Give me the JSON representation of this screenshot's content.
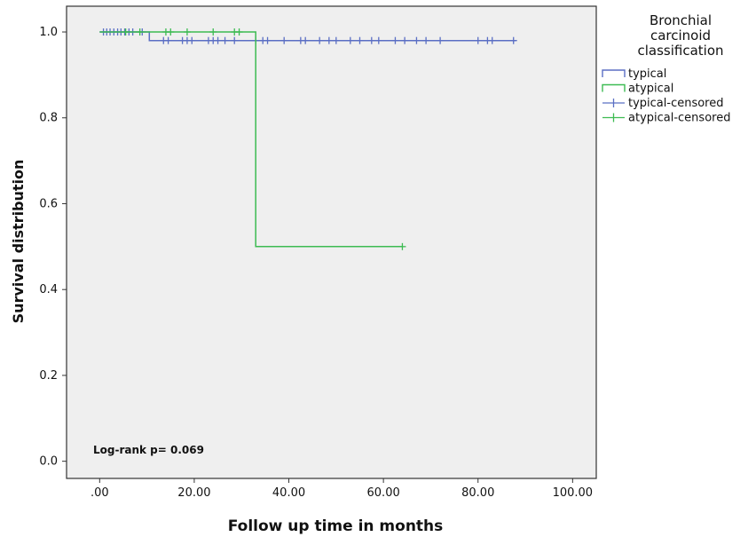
{
  "chart_data": {
    "type": "line",
    "subtype": "kaplan-meier",
    "xlabel": "Follow up time in months",
    "ylabel": "Survival distribution",
    "xlim": [
      -7,
      105
    ],
    "ylim": [
      -0.04,
      1.06
    ],
    "x_ticks": [
      0,
      20,
      40,
      60,
      80,
      100
    ],
    "x_tick_labels": [
      ".00",
      "20.00",
      "40.00",
      "60.00",
      "80.00",
      "100.00"
    ],
    "y_ticks": [
      0.0,
      0.2,
      0.4,
      0.6,
      0.8,
      1.0
    ],
    "y_tick_labels": [
      "0.0",
      "0.2",
      "0.4",
      "0.6",
      "0.8",
      "1.0"
    ],
    "grid": false,
    "legend_title_lines": [
      "Bronchial",
      "carcinoid",
      "classification"
    ],
    "legend_placement": "right-top",
    "legend": [
      {
        "label": "typical",
        "marker": "step",
        "color": "#5b6fc4"
      },
      {
        "label": "atypical",
        "marker": "step",
        "color": "#3dbb52"
      },
      {
        "label": "typical-censored",
        "marker": "plus",
        "color": "#5b6fc4"
      },
      {
        "label": "atypical-censored",
        "marker": "plus",
        "color": "#3dbb52"
      }
    ],
    "annotation": "Log-rank p= 0.069",
    "series": [
      {
        "name": "typical",
        "color": "#5b6fc4",
        "steps": [
          [
            0,
            1.0
          ],
          [
            10.5,
            1.0
          ],
          [
            10.5,
            0.98
          ],
          [
            88,
            0.98
          ]
        ],
        "censored": [
          {
            "x": 0.8,
            "y": 1.0
          },
          {
            "x": 1.5,
            "y": 1.0
          },
          {
            "x": 2.2,
            "y": 1.0
          },
          {
            "x": 3.0,
            "y": 1.0
          },
          {
            "x": 3.8,
            "y": 1.0
          },
          {
            "x": 4.5,
            "y": 1.0
          },
          {
            "x": 5.3,
            "y": 1.0
          },
          {
            "x": 6.2,
            "y": 1.0
          },
          {
            "x": 7.0,
            "y": 1.0
          },
          {
            "x": 9.0,
            "y": 1.0
          },
          {
            "x": 13.5,
            "y": 0.98
          },
          {
            "x": 14.5,
            "y": 0.98
          },
          {
            "x": 17.5,
            "y": 0.98
          },
          {
            "x": 18.5,
            "y": 0.98
          },
          {
            "x": 19.5,
            "y": 0.98
          },
          {
            "x": 23.0,
            "y": 0.98
          },
          {
            "x": 24.0,
            "y": 0.98
          },
          {
            "x": 25.0,
            "y": 0.98
          },
          {
            "x": 26.5,
            "y": 0.98
          },
          {
            "x": 28.5,
            "y": 0.98
          },
          {
            "x": 33.0,
            "y": 0.98
          },
          {
            "x": 34.5,
            "y": 0.98
          },
          {
            "x": 35.5,
            "y": 0.98
          },
          {
            "x": 39.0,
            "y": 0.98
          },
          {
            "x": 42.5,
            "y": 0.98
          },
          {
            "x": 43.5,
            "y": 0.98
          },
          {
            "x": 46.5,
            "y": 0.98
          },
          {
            "x": 48.5,
            "y": 0.98
          },
          {
            "x": 50.0,
            "y": 0.98
          },
          {
            "x": 53.0,
            "y": 0.98
          },
          {
            "x": 55.0,
            "y": 0.98
          },
          {
            "x": 57.5,
            "y": 0.98
          },
          {
            "x": 59.0,
            "y": 0.98
          },
          {
            "x": 62.5,
            "y": 0.98
          },
          {
            "x": 64.5,
            "y": 0.98
          },
          {
            "x": 67.0,
            "y": 0.98
          },
          {
            "x": 69.0,
            "y": 0.98
          },
          {
            "x": 72.0,
            "y": 0.98
          },
          {
            "x": 80.0,
            "y": 0.98
          },
          {
            "x": 82.0,
            "y": 0.98
          },
          {
            "x": 83.0,
            "y": 0.98
          },
          {
            "x": 87.5,
            "y": 0.98
          }
        ]
      },
      {
        "name": "atypical",
        "color": "#3dbb52",
        "steps": [
          [
            0,
            1.0
          ],
          [
            33,
            1.0
          ],
          [
            33,
            0.5
          ],
          [
            64,
            0.5
          ]
        ],
        "censored": [
          {
            "x": 5.5,
            "y": 1.0
          },
          {
            "x": 8.5,
            "y": 1.0
          },
          {
            "x": 14.0,
            "y": 1.0
          },
          {
            "x": 15.0,
            "y": 1.0
          },
          {
            "x": 18.5,
            "y": 1.0
          },
          {
            "x": 24.0,
            "y": 1.0
          },
          {
            "x": 28.5,
            "y": 1.0
          },
          {
            "x": 29.5,
            "y": 1.0
          },
          {
            "x": 64.0,
            "y": 0.5
          }
        ]
      }
    ]
  }
}
